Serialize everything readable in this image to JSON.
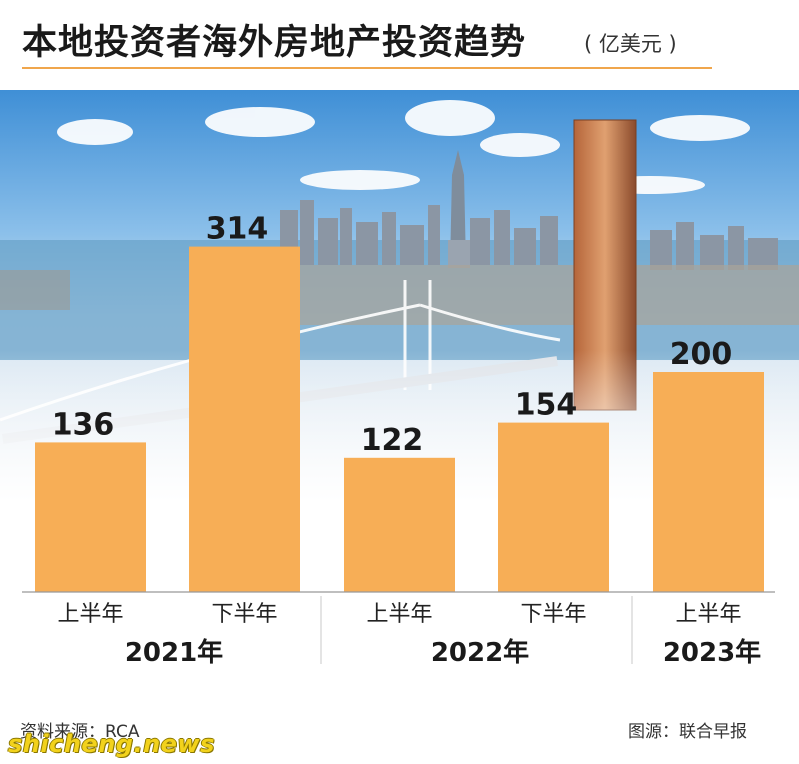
{
  "header": {
    "title": "本地投资者海外房地产投资趋势",
    "unit": "( 亿美元 )"
  },
  "chart_data": {
    "type": "bar",
    "categories": [
      "上半年",
      "下半年",
      "上半年",
      "下半年",
      "上半年"
    ],
    "values": [
      136,
      314,
      122,
      154,
      200
    ],
    "groups": [
      {
        "label": "2021年",
        "bars": [
          0,
          1
        ]
      },
      {
        "label": "2022年",
        "bars": [
          2,
          3
        ]
      },
      {
        "label": "2023年",
        "bars": [
          4
        ]
      }
    ],
    "ylim": [
      0,
      340
    ],
    "grid": false,
    "data_labels": true,
    "bar_color": "#f7ae56"
  },
  "footer": {
    "source": "资料来源：RCA",
    "credit": "图源：联合早报",
    "watermark": "shicheng.news"
  }
}
